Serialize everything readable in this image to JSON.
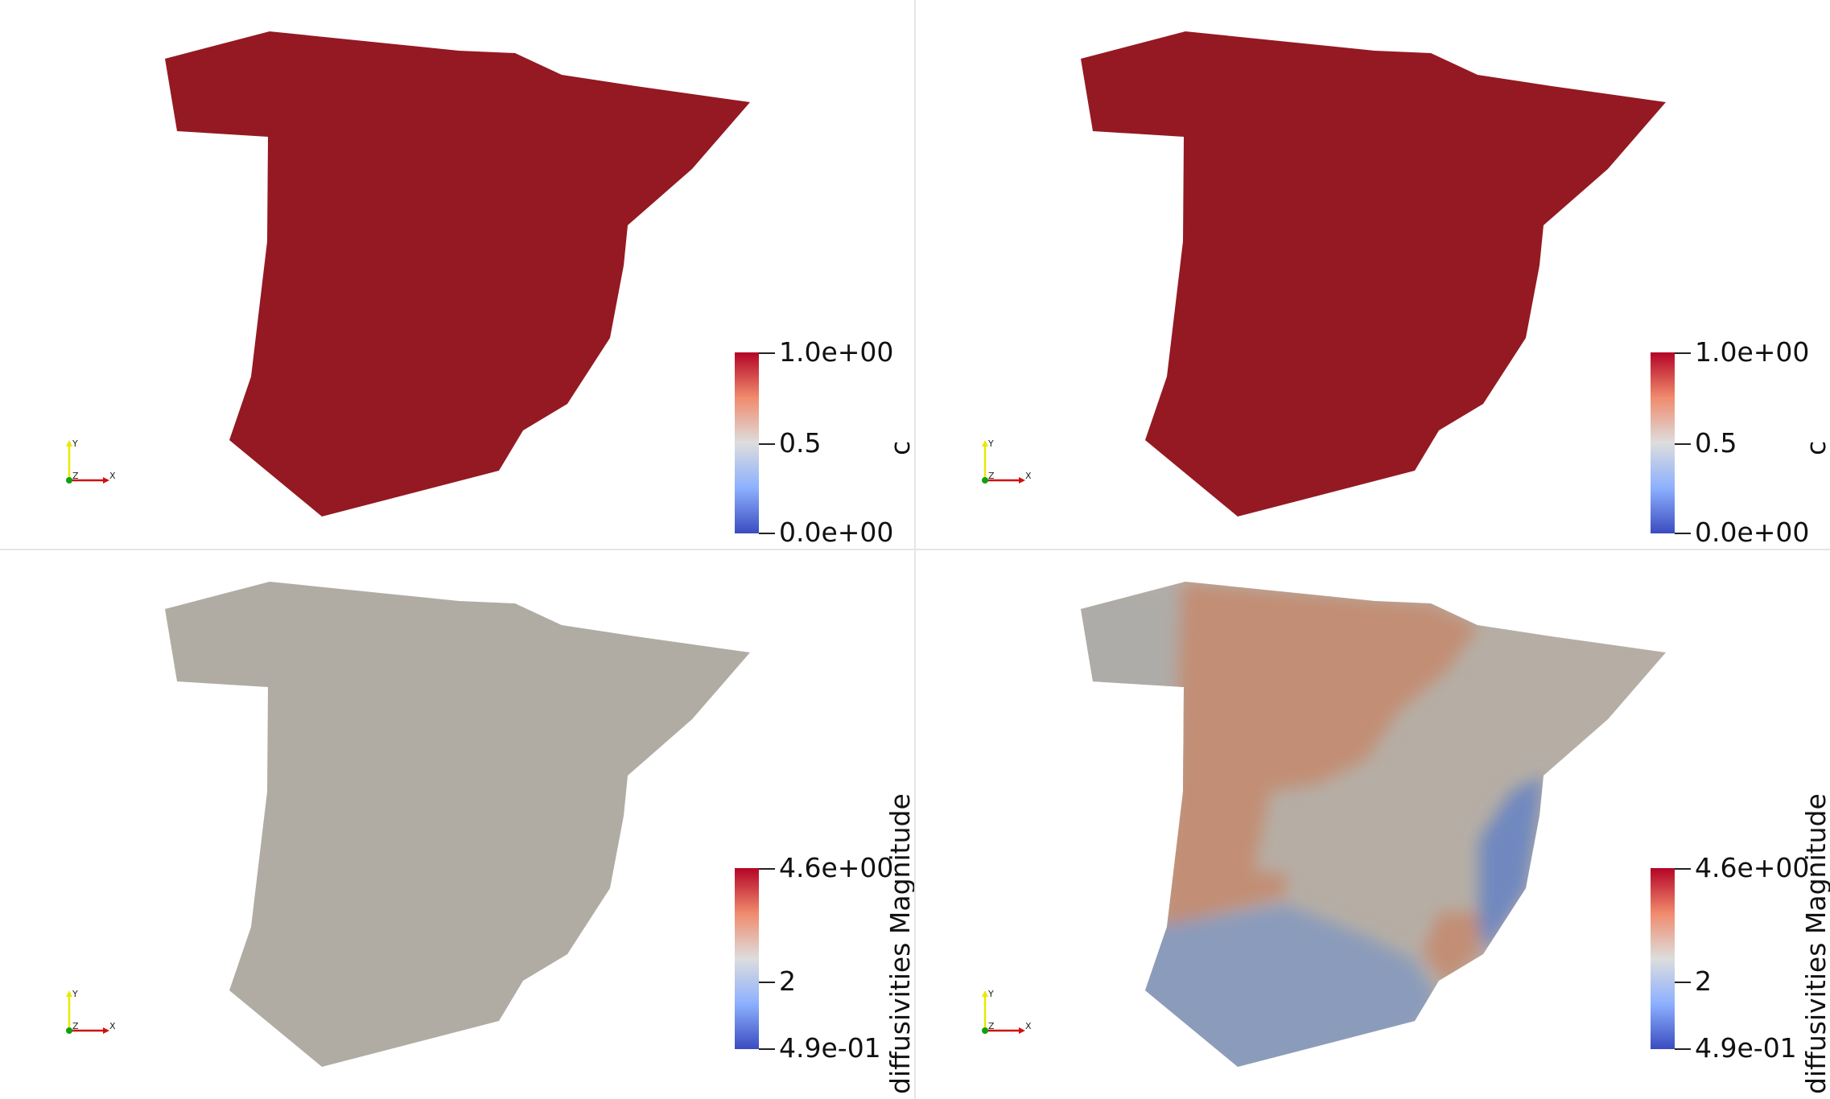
{
  "views": [
    {
      "id": "view-top-left",
      "field": "c",
      "colorbar": {
        "title": "c",
        "max_label": "1.0e+00",
        "mid_label": "0.5",
        "min_label": "0.0e+00",
        "top_color": "#b40426",
        "mid_color": "#dddddd",
        "bottom_color": "#3b4cc0"
      },
      "region_fill": "#941922",
      "axes": {
        "x": "X",
        "y": "Y",
        "z": "Z"
      }
    },
    {
      "id": "view-top-right",
      "field": "c",
      "colorbar": {
        "title": "c",
        "max_label": "1.0e+00",
        "mid_label": "0.5",
        "min_label": "0.0e+00",
        "top_color": "#b40426",
        "mid_color": "#dddddd",
        "bottom_color": "#3b4cc0"
      },
      "region_fill": "#941922",
      "axes": {
        "x": "X",
        "y": "Y",
        "z": "Z"
      }
    },
    {
      "id": "view-bottom-left",
      "field": "diffusivities Magnitude",
      "colorbar": {
        "title": "diffusivities Magnitude",
        "max_label": "4.6e+00",
        "mid_label": "2",
        "min_label": "4.9e-01",
        "top_color": "#b40426",
        "mid_color": "#dddddd",
        "bottom_color": "#3b4cc0"
      },
      "region_fill": "#b0aca4",
      "axes": {
        "x": "X",
        "y": "Y",
        "z": "Z"
      }
    },
    {
      "id": "view-bottom-right",
      "field": "diffusivities Magnitude",
      "colorbar": {
        "title": "diffusivities Magnitude",
        "max_label": "4.6e+00",
        "mid_label": "2",
        "min_label": "4.9e-01",
        "top_color": "#b40426",
        "mid_color": "#dddddd",
        "bottom_color": "#3b4cc0"
      },
      "region_fill": "#b6aea5",
      "region_colors": {
        "red_zone": "#c28e75",
        "blue_south": "#8a9bbb",
        "blue_east": "#6f88bf",
        "grey": "#aeaca8"
      },
      "axes": {
        "x": "X",
        "y": "Y",
        "z": "Z"
      }
    }
  ]
}
